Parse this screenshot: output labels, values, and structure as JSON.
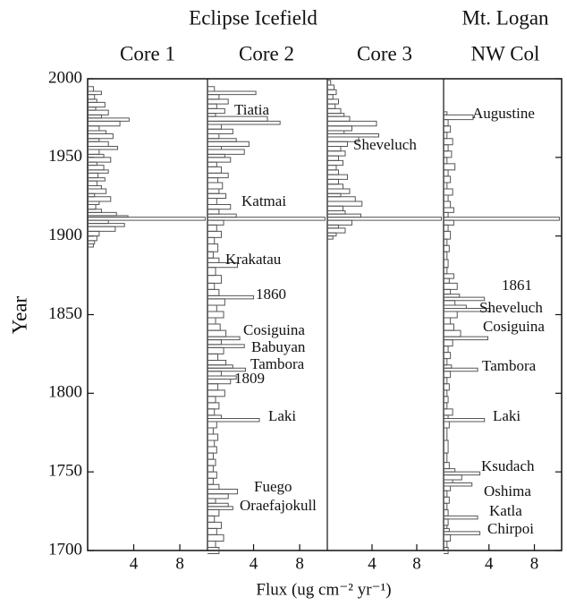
{
  "groups": [
    "Eclipse Icefield",
    "Mt. Logan"
  ],
  "y_label": "Year",
  "x_label": "Flux (ug cm⁻² yr⁻¹)",
  "chart_data": [
    {
      "type": "step",
      "title": "Core 1",
      "xlim": [
        0,
        10.4
      ],
      "xticks": [
        4,
        8
      ],
      "ylim": [
        1700,
        2000
      ],
      "yticks": [
        1700,
        1750,
        1800,
        1850,
        1900,
        1950,
        2000
      ],
      "years": [
        1995,
        1992,
        1990,
        1987,
        1985,
        1982,
        1980,
        1977,
        1975,
        1973,
        1970,
        1967,
        1965,
        1962,
        1960,
        1957,
        1955,
        1952,
        1950,
        1947,
        1945,
        1942,
        1940,
        1937,
        1935,
        1932,
        1930,
        1927,
        1925,
        1922,
        1920,
        1917,
        1915,
        1913,
        1912,
        1910,
        1908,
        1906,
        1903,
        1900,
        1897,
        1895
      ],
      "values": [
        0.5,
        1.2,
        0.6,
        0.8,
        1.5,
        0.7,
        1.8,
        1.2,
        3.6,
        2.8,
        1.0,
        1.6,
        2.2,
        1.0,
        1.8,
        2.6,
        1.0,
        1.4,
        2.0,
        0.8,
        1.4,
        1.8,
        0.9,
        1.5,
        0.8,
        1.2,
        1.6,
        0.6,
        2.0,
        1.0,
        0.7,
        1.2,
        2.5,
        3.5,
        10.2,
        1.8,
        3.2,
        2.4,
        1.0,
        0.8,
        0.6,
        0.5
      ],
      "annotations": []
    },
    {
      "type": "step",
      "title": "Core 2",
      "xlim": [
        0,
        10.4
      ],
      "xticks": [
        4,
        8
      ],
      "ylim": [
        1700,
        2000
      ],
      "years": [
        1995,
        1992,
        1990,
        1987,
        1984,
        1981,
        1978,
        1976,
        1973,
        1971,
        1968,
        1965,
        1962,
        1960,
        1957,
        1955,
        1952,
        1950,
        1947,
        1944,
        1940,
        1937,
        1934,
        1930,
        1927,
        1924,
        1920,
        1917,
        1914,
        1912,
        1910,
        1907,
        1903,
        1899,
        1895,
        1890,
        1886,
        1883,
        1880,
        1875,
        1870,
        1866,
        1862,
        1860,
        1856,
        1852,
        1848,
        1844,
        1840,
        1836,
        1834,
        1831,
        1829,
        1825,
        1821,
        1818,
        1816,
        1814,
        1811,
        1809,
        1806,
        1802,
        1798,
        1794,
        1790,
        1786,
        1784,
        1782,
        1778,
        1774,
        1770,
        1766,
        1762,
        1758,
        1754,
        1750,
        1746,
        1742,
        1739,
        1736,
        1733,
        1730,
        1728,
        1726,
        1722,
        1718,
        1714,
        1710,
        1706,
        1702
      ],
      "values": [
        0.6,
        4.2,
        1.0,
        1.8,
        0.8,
        1.5,
        0.7,
        5.2,
        6.3,
        1.2,
        2.2,
        1.0,
        2.5,
        3.6,
        1.2,
        3.2,
        1.5,
        2.0,
        0.8,
        1.2,
        1.8,
        0.9,
        1.3,
        1.0,
        1.6,
        0.8,
        2.0,
        1.0,
        2.5,
        10.2,
        1.4,
        0.8,
        1.2,
        0.6,
        0.9,
        0.5,
        1.0,
        2.6,
        0.7,
        1.2,
        0.6,
        1.0,
        4.0,
        1.5,
        0.8,
        1.4,
        0.7,
        1.1,
        1.6,
        2.8,
        1.2,
        3.2,
        1.4,
        0.9,
        1.6,
        2.2,
        3.3,
        1.2,
        2.5,
        2.0,
        0.9,
        1.5,
        0.7,
        1.0,
        0.6,
        1.2,
        4.5,
        0.8,
        0.5,
        0.9,
        0.6,
        0.8,
        0.5,
        0.7,
        0.5,
        0.8,
        0.5,
        1.0,
        2.6,
        1.8,
        0.7,
        1.8,
        2.2,
        1.0,
        0.6,
        1.2,
        0.8,
        1.4,
        0.7,
        1.0
      ],
      "annotations": [
        "Tiatia",
        "Katmai",
        "Krakatau",
        "1860",
        "Cosiguina",
        "Babuyan",
        "Tambora",
        "1809",
        "Laki",
        "Fuego",
        "Oraefajokull"
      ]
    },
    {
      "type": "step",
      "title": "Core 3",
      "xlim": [
        0,
        10.4
      ],
      "xticks": [
        4,
        8
      ],
      "ylim": [
        1700,
        2000
      ],
      "years": [
        1999,
        1996,
        1993,
        1990,
        1987,
        1984,
        1981,
        1978,
        1976,
        1973,
        1970,
        1967,
        1965,
        1963,
        1960,
        1957,
        1954,
        1951,
        1948,
        1945,
        1942,
        1939,
        1936,
        1933,
        1930,
        1927,
        1925,
        1922,
        1919,
        1916,
        1914,
        1912,
        1910,
        1907,
        1905,
        1902,
        1900
      ],
      "values": [
        0.3,
        0.6,
        0.8,
        0.5,
        1.0,
        0.7,
        1.2,
        1.5,
        2.0,
        4.4,
        2.2,
        1.5,
        4.6,
        2.8,
        1.8,
        1.2,
        1.6,
        1.0,
        1.4,
        0.8,
        1.0,
        1.8,
        1.0,
        1.4,
        2.0,
        1.2,
        2.5,
        3.1,
        1.4,
        1.6,
        3.0,
        10.2,
        2.2,
        1.0,
        1.6,
        0.8,
        0.5
      ],
      "annotations": [
        "Sheveluch"
      ]
    },
    {
      "type": "step",
      "title": "NW Col",
      "xlim": [
        0,
        10.4
      ],
      "xticks": [
        4,
        8
      ],
      "ylim": [
        1700,
        2000
      ],
      "years": [
        1979,
        1977,
        1974,
        1970,
        1966,
        1962,
        1958,
        1954,
        1950,
        1946,
        1942,
        1938,
        1934,
        1930,
        1926,
        1922,
        1918,
        1915,
        1912,
        1910,
        1907,
        1903,
        1898,
        1894,
        1890,
        1885,
        1880,
        1876,
        1873,
        1870,
        1866,
        1863,
        1861,
        1859,
        1856,
        1854,
        1852,
        1848,
        1844,
        1840,
        1836,
        1834,
        1830,
        1826,
        1822,
        1818,
        1816,
        1814,
        1810,
        1806,
        1802,
        1798,
        1794,
        1790,
        1786,
        1784,
        1782,
        1778,
        1770,
        1762,
        1756,
        1752,
        1750,
        1748,
        1745,
        1743,
        1741,
        1738,
        1734,
        1730,
        1726,
        1722,
        1720,
        1716,
        1714,
        1712,
        1710,
        1706,
        1702
      ],
      "values": [
        0.3,
        2.6,
        0.4,
        0.6,
        0.3,
        0.8,
        0.4,
        0.7,
        0.3,
        1.0,
        0.4,
        0.6,
        0.3,
        0.8,
        0.4,
        0.6,
        0.9,
        0.4,
        10.2,
        0.9,
        0.4,
        0.6,
        0.3,
        0.5,
        0.3,
        0.4,
        0.3,
        0.9,
        0.5,
        1.2,
        0.6,
        1.4,
        3.6,
        1.0,
        2.0,
        4.1,
        1.2,
        0.6,
        0.9,
        1.5,
        3.9,
        0.8,
        0.4,
        0.6,
        0.3,
        0.7,
        3.0,
        0.6,
        0.3,
        0.5,
        0.3,
        0.4,
        0.3,
        0.8,
        0.4,
        3.6,
        0.5,
        0.3,
        0.4,
        0.3,
        0.5,
        1.0,
        3.2,
        1.6,
        0.8,
        2.5,
        0.6,
        0.3,
        0.5,
        0.3,
        0.4,
        3.0,
        0.4,
        0.3,
        0.5,
        3.2,
        0.6,
        0.3,
        0.4
      ],
      "annotations": [
        "Augustine",
        "1861",
        "Sheveluch",
        "Cosiguina",
        "Tambora",
        "Laki",
        "Ksudach",
        "Oshima",
        "Katla",
        "Chirpoi"
      ]
    }
  ]
}
